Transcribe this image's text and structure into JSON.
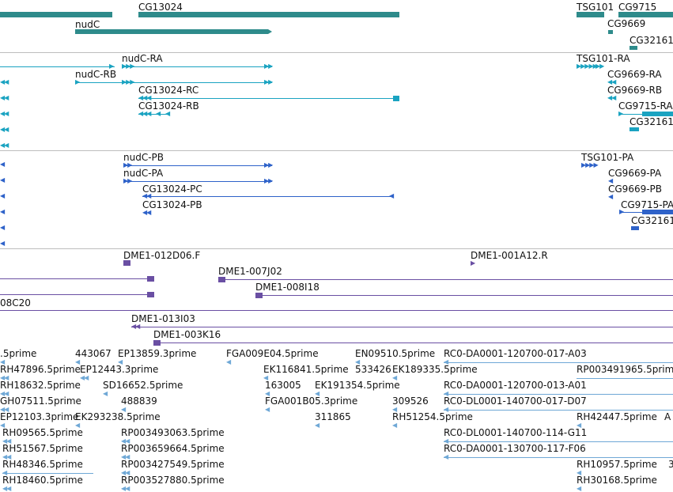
{
  "colors": {
    "gene": "#2e8b8b",
    "transcript": "#1aa3c1",
    "protein": "#2e62c9",
    "clone": "#6a4fa3",
    "est": "#6fa8d6",
    "separator": "#bdbdbd"
  },
  "tracks": {
    "genes": {
      "features": [
        {
          "label": ""
        },
        {
          "label": "CG13024"
        },
        {
          "label": "nudC"
        },
        {
          "label": "TSG101"
        },
        {
          "label": "CG9715"
        },
        {
          "label": "CG9669"
        },
        {
          "label": "CG32161"
        }
      ]
    },
    "transcripts": {
      "features": [
        {
          "label": "nudC-RA"
        },
        {
          "label": "nudC-RB"
        },
        {
          "label": "CG13024-RC"
        },
        {
          "label": "CG13024-RB"
        },
        {
          "label": "TSG101-RA"
        },
        {
          "label": "CG9669-RA"
        },
        {
          "label": "CG9669-RB"
        },
        {
          "label": "CG9715-RA"
        },
        {
          "label": "CG32161"
        }
      ]
    },
    "proteins": {
      "features": [
        {
          "label": "nudC-PB"
        },
        {
          "label": "nudC-PA"
        },
        {
          "label": "CG13024-PC"
        },
        {
          "label": "CG13024-PB"
        },
        {
          "label": "TSG101-PA"
        },
        {
          "label": "CG9669-PA"
        },
        {
          "label": "CG9669-PB"
        },
        {
          "label": "CG9715-PA"
        },
        {
          "label": "CG32161"
        }
      ]
    },
    "clones": {
      "features": [
        {
          "label": "DME1-012D06.F"
        },
        {
          "label": "DME1-001A12.R"
        },
        {
          "label": "DME1-007J02"
        },
        {
          "label": "DME1-008I18"
        },
        {
          "label": "08C20"
        },
        {
          "label": "DME1-013I03"
        },
        {
          "label": "DME1-003K16"
        }
      ]
    },
    "ests": {
      "features": [
        {
          "label": ".5prime"
        },
        {
          "label": "443067"
        },
        {
          "label": "EP13859.3prime"
        },
        {
          "label": "FGA009E04.5prime"
        },
        {
          "label": "EN09510.5prime"
        },
        {
          "label": "RC0-DA0001-120700-017-A03"
        },
        {
          "label": "RH47896.5prime"
        },
        {
          "label": "EP12443.3prime"
        },
        {
          "label": "EK116841.5prime"
        },
        {
          "label": "533426"
        },
        {
          "label": "EK189335.5prime"
        },
        {
          "label": "RP003491965.5prime"
        },
        {
          "label": "RH18632.5prime"
        },
        {
          "label": "SD16652.5prime"
        },
        {
          "label": "163005"
        },
        {
          "label": "EK191354.5prime"
        },
        {
          "label": "RC0-DA0001-120700-013-A01"
        },
        {
          "label": "GH07511.5prime"
        },
        {
          "label": "488839"
        },
        {
          "label": "FGA001B05.3prime"
        },
        {
          "label": "309526"
        },
        {
          "label": "RC0-DL0001-140700-017-D07"
        },
        {
          "label": "EP12103.3prime"
        },
        {
          "label": "EK293238.5prime"
        },
        {
          "label": "311865"
        },
        {
          "label": "RH51254.5prime"
        },
        {
          "label": "RH42447.5prime"
        },
        {
          "label": "A"
        },
        {
          "label": "RH09565.5prime"
        },
        {
          "label": "RP003493063.5prime"
        },
        {
          "label": "RC0-DL0001-140700-114-G11"
        },
        {
          "label": "RH51567.5prime"
        },
        {
          "label": "RP003659664.5prime"
        },
        {
          "label": "RC0-DA0001-130700-117-F06"
        },
        {
          "label": "RH48346.5prime"
        },
        {
          "label": "RP003427549.5prime"
        },
        {
          "label": "RH10957.5prime"
        },
        {
          "label": "3"
        },
        {
          "label": "RH18460.5prime"
        },
        {
          "label": "RP003527880.5prime"
        },
        {
          "label": "RH30168.5prime"
        }
      ]
    }
  }
}
